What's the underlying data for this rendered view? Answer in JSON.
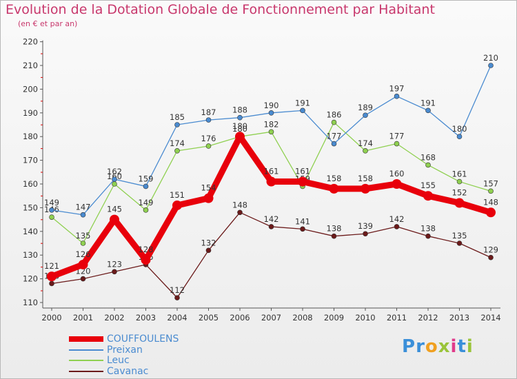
{
  "title": "Evolution de la Dotation Globale de Fonctionnement par Habitant",
  "subtitle": "(en € et par an)",
  "logo": {
    "text": "Proxiti",
    "letters": [
      {
        "ch": "P",
        "color": "#3a8fd9"
      },
      {
        "ch": "r",
        "color": "#3a8fd9"
      },
      {
        "ch": "o",
        "color": "#f0a020"
      },
      {
        "ch": "x",
        "color": "#9ac43a"
      },
      {
        "ch": "i",
        "color": "#e03a8a"
      },
      {
        "ch": "t",
        "color": "#3a8fd9"
      },
      {
        "ch": "i",
        "color": "#9ac43a"
      }
    ]
  },
  "chart_data": {
    "type": "line",
    "title": "Evolution de la Dotation Globale de Fonctionnement par Habitant",
    "subtitle": "(en € et par an)",
    "x": [
      "2000",
      "2001",
      "2002",
      "2003",
      "2004",
      "2005",
      "2006",
      "2007",
      "2008",
      "2009",
      "2010",
      "2011",
      "2012",
      "2013",
      "2014"
    ],
    "ylim": [
      110,
      220
    ],
    "yticks": [
      110,
      120,
      130,
      140,
      150,
      160,
      170,
      180,
      190,
      200,
      210,
      220
    ],
    "grid": false,
    "legend_position": "bottom-left",
    "series": [
      {
        "name": "COUFFOULENS",
        "color": "#e8000b",
        "values": [
          121,
          126,
          145,
          128,
          151,
          154,
          180,
          161,
          161,
          158,
          158,
          160,
          155,
          152,
          148
        ]
      },
      {
        "name": "Preixan",
        "color": "#4a8bd0",
        "values": [
          149,
          147,
          162,
          159,
          185,
          187,
          188,
          190,
          191,
          177,
          189,
          197,
          191,
          180,
          210
        ]
      },
      {
        "name": "Leuc",
        "color": "#8fd050",
        "values": [
          146,
          135,
          160,
          149,
          174,
          176,
          180,
          182,
          159,
          186,
          174,
          177,
          168,
          161,
          157
        ]
      },
      {
        "name": "Cavanac",
        "color": "#6b1a1a",
        "values": [
          118,
          120,
          123,
          126,
          112,
          132,
          148,
          142,
          141,
          138,
          139,
          142,
          138,
          135,
          129
        ]
      }
    ]
  }
}
